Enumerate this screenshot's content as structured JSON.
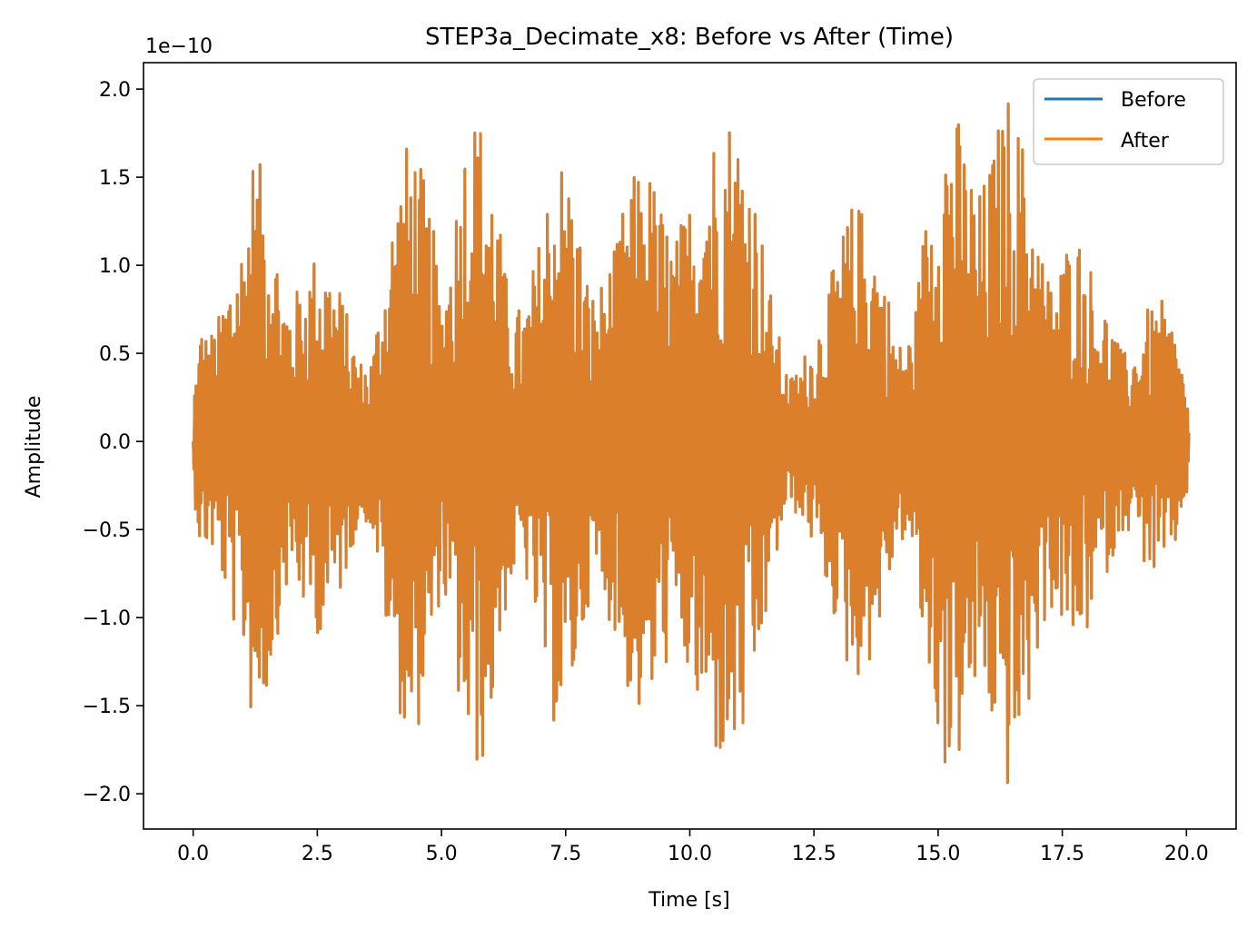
{
  "chart_data": {
    "type": "line",
    "title": "STEP3a_Decimate_x8: Before vs After (Time)",
    "xlabel": "Time [s]",
    "ylabel": "Amplitude",
    "y_offset_text": "1e−10",
    "xlim": [
      -1.0,
      21.0
    ],
    "ylim": [
      -2.2,
      2.15
    ],
    "y_scale_factor": 1e-10,
    "x_ticks": [
      0.0,
      2.5,
      5.0,
      7.5,
      10.0,
      12.5,
      15.0,
      17.5,
      20.0
    ],
    "x_tick_labels": [
      "0.0",
      "2.5",
      "5.0",
      "7.5",
      "10.0",
      "12.5",
      "15.0",
      "17.5",
      "20.0"
    ],
    "y_ticks": [
      -2.0,
      -1.5,
      -1.0,
      -0.5,
      0.0,
      0.5,
      1.0,
      1.5,
      2.0
    ],
    "y_tick_labels": [
      "−2.0",
      "−1.5",
      "−1.0",
      "−0.5",
      "0.0",
      "0.5",
      "1.0",
      "1.5",
      "2.0"
    ],
    "grid": false,
    "legend_position": "top-right",
    "envelope_x": [
      0.0,
      0.1,
      0.15,
      0.3,
      0.5,
      0.75,
      1.0,
      1.2,
      1.4,
      1.6,
      1.8,
      2.0,
      2.2,
      2.5,
      2.7,
      3.0,
      3.2,
      3.4,
      3.6,
      3.8,
      4.0,
      4.2,
      4.4,
      4.6,
      4.8,
      5.0,
      5.2,
      5.5,
      5.7,
      5.9,
      6.1,
      6.3,
      6.5,
      6.7,
      7.0,
      7.2,
      7.5,
      7.7,
      8.0,
      8.2,
      8.5,
      8.7,
      9.0,
      9.2,
      9.5,
      9.7,
      10.0,
      10.2,
      10.4,
      10.6,
      10.8,
      11.0,
      11.2,
      11.4,
      11.6,
      11.8,
      12.0,
      12.2,
      12.5,
      12.7,
      13.0,
      13.2,
      13.5,
      13.7,
      14.0,
      14.2,
      14.5,
      14.7,
      15.0,
      15.2,
      15.4,
      15.6,
      15.8,
      16.0,
      16.2,
      16.4,
      16.6,
      16.8,
      17.0,
      17.2,
      17.5,
      17.7,
      18.0,
      18.2,
      18.5,
      18.7,
      19.0,
      19.2,
      19.5,
      19.7,
      20.0,
      20.05
    ],
    "envelope_values": [
      0.3,
      0.5,
      0.7,
      0.6,
      0.7,
      1.0,
      1.2,
      1.65,
      1.55,
      1.3,
      0.9,
      0.8,
      0.95,
      1.1,
      1.05,
      0.85,
      0.6,
      0.45,
      0.5,
      0.9,
      1.3,
      1.6,
      1.8,
      1.55,
      1.3,
      0.8,
      1.2,
      1.85,
      1.9,
      1.8,
      1.4,
      0.95,
      0.75,
      0.8,
      1.2,
      1.6,
      1.65,
      1.35,
      0.85,
      0.9,
      1.1,
      1.4,
      1.6,
      1.55,
      1.3,
      1.15,
      1.4,
      1.65,
      1.75,
      1.85,
      1.9,
      1.8,
      1.65,
      1.3,
      0.9,
      0.6,
      0.35,
      0.45,
      0.6,
      0.8,
      1.1,
      1.35,
      1.35,
      1.2,
      0.85,
      0.55,
      0.65,
      1.2,
      1.7,
      1.95,
      1.85,
      1.65,
      1.4,
      1.55,
      1.8,
      2.0,
      1.85,
      1.6,
      1.25,
      0.95,
      1.05,
      1.25,
      1.1,
      0.85,
      0.7,
      0.5,
      0.55,
      0.75,
      0.8,
      0.7,
      0.35,
      0.05
    ],
    "series": [
      {
        "name": "Before",
        "color": "#1f77b4"
      },
      {
        "name": "After",
        "color": "#ff7f0e"
      }
    ],
    "overlap_color": "#dc7f2b"
  }
}
